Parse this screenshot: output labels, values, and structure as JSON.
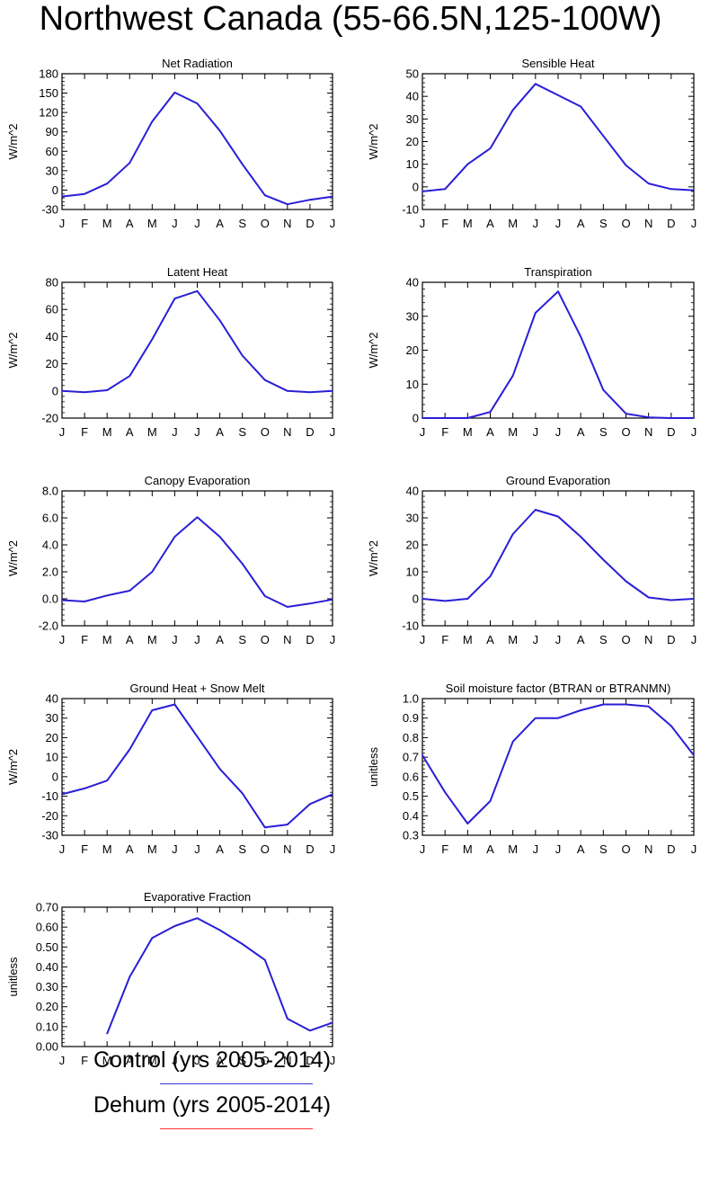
{
  "page": {
    "title": "Northwest Canada (55-66.5N,125-100W)"
  },
  "legend": [
    {
      "label": "Control (yrs 2005-2014)",
      "color": "#3a36d6"
    },
    {
      "label": "Dehum (yrs 2005-2014)",
      "color": "#ff3030"
    }
  ],
  "series_color": "#2a1ed6",
  "month_labels": [
    "J",
    "F",
    "M",
    "A",
    "M",
    "J",
    "J",
    "A",
    "S",
    "O",
    "N",
    "D",
    "J"
  ],
  "chart_data": [
    {
      "type": "line",
      "title": "Net Radiation",
      "ylabel": "W/m^2",
      "ylim": [
        -30,
        180
      ],
      "yticks": [
        "-30",
        "0",
        "30",
        "60",
        "90",
        "120",
        "150",
        "180"
      ],
      "series": [
        {
          "name": "Control (yrs 2005-2014)",
          "values": [
            -10,
            -6,
            10,
            42,
            106,
            151,
            134,
            92,
            40,
            -8,
            -22,
            -15,
            -10
          ]
        }
      ]
    },
    {
      "type": "line",
      "title": "Sensible Heat",
      "ylabel": "W/m^2",
      "ylim": [
        -10,
        50
      ],
      "yticks": [
        "-10",
        "0",
        "10",
        "20",
        "30",
        "40",
        "50"
      ],
      "series": [
        {
          "name": "Control (yrs 2005-2014)",
          "values": [
            -2,
            -1,
            10,
            17,
            34,
            45.5,
            40.5,
            35.5,
            22.5,
            9.5,
            1.5,
            -1,
            -1.5
          ]
        }
      ]
    },
    {
      "type": "line",
      "title": "Latent Heat",
      "ylabel": "W/m^2",
      "ylim": [
        -20,
        80
      ],
      "yticks": [
        "-20",
        "0",
        "20",
        "40",
        "60",
        "80"
      ],
      "series": [
        {
          "name": "Control (yrs 2005-2014)",
          "values": [
            0,
            -1,
            0.5,
            11,
            38,
            68,
            73.5,
            52,
            26,
            8,
            0,
            -1,
            0
          ]
        }
      ]
    },
    {
      "type": "line",
      "title": "Transpiration",
      "ylabel": "W/m^2",
      "ylim": [
        0,
        40
      ],
      "yticks": [
        "0",
        "10",
        "20",
        "30",
        "40"
      ],
      "series": [
        {
          "name": "Control (yrs 2005-2014)",
          "values": [
            0,
            0,
            0,
            1.8,
            12.5,
            31,
            37.3,
            24,
            8.3,
            1.3,
            0.2,
            0,
            0
          ]
        }
      ]
    },
    {
      "type": "line",
      "title": "Canopy Evaporation",
      "ylabel": "W/m^2",
      "ylim": [
        -2,
        8
      ],
      "yticks": [
        "-2.0",
        "0.0",
        "2.0",
        "4.0",
        "6.0",
        "8.0"
      ],
      "series": [
        {
          "name": "Control (yrs 2005-2014)",
          "values": [
            -0.1,
            -0.2,
            0.25,
            0.6,
            2.0,
            4.6,
            6.05,
            4.6,
            2.6,
            0.2,
            -0.6,
            -0.35,
            -0.05
          ]
        }
      ]
    },
    {
      "type": "line",
      "title": "Ground Evaporation",
      "ylabel": "W/m^2",
      "ylim": [
        -10,
        40
      ],
      "yticks": [
        "-10",
        "0",
        "10",
        "20",
        "30",
        "40"
      ],
      "series": [
        {
          "name": "Control (yrs 2005-2014)",
          "values": [
            0,
            -0.8,
            0,
            8.3,
            24,
            33,
            30.5,
            23,
            14.5,
            6.5,
            0.5,
            -0.5,
            0
          ]
        }
      ]
    },
    {
      "type": "line",
      "title": "Ground Heat + Snow Melt",
      "ylabel": "W/m^2",
      "ylim": [
        -30,
        40
      ],
      "yticks": [
        "-30",
        "-20",
        "-10",
        "0",
        "10",
        "20",
        "30",
        "40"
      ],
      "series": [
        {
          "name": "Control (yrs 2005-2014)",
          "values": [
            -9,
            -6,
            -2,
            14,
            34,
            37,
            20.5,
            4,
            -8.5,
            -26,
            -24.5,
            -14,
            -9
          ]
        }
      ]
    },
    {
      "type": "line",
      "title": "Soil moisture factor (BTRAN or BTRANMN)",
      "ylabel": "unitless",
      "ylim": [
        0.3,
        1.0
      ],
      "yticks": [
        "0.3",
        "0.4",
        "0.5",
        "0.6",
        "0.7",
        "0.8",
        "0.9",
        "1.0"
      ],
      "series": [
        {
          "name": "Control (yrs 2005-2014)",
          "values": [
            0.71,
            0.52,
            0.36,
            0.475,
            0.78,
            0.9,
            0.9,
            0.94,
            0.97,
            0.97,
            0.96,
            0.86,
            0.71
          ]
        }
      ]
    },
    {
      "type": "line",
      "title": "Evaporative Fraction",
      "ylabel": "unitless",
      "ylim": [
        0,
        0.7
      ],
      "yticks": [
        "0.00",
        "0.10",
        "0.20",
        "0.30",
        "0.40",
        "0.50",
        "0.60",
        "0.70"
      ],
      "series": [
        {
          "name": "Control (yrs 2005-2014)",
          "values": [
            null,
            null,
            0.065,
            0.35,
            0.545,
            0.605,
            0.645,
            0.585,
            0.515,
            0.435,
            0.14,
            0.08,
            0.12
          ]
        }
      ]
    }
  ]
}
